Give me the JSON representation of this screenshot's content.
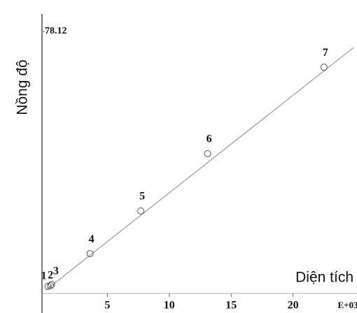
{
  "chart_data": {
    "type": "scatter",
    "y_label": "Nồng độ",
    "x_label": "Diện tích",
    "x_scale_label": "E+03",
    "x": [
      0.2,
      0.4,
      0.5,
      3.6,
      7.7,
      13.1,
      22.5
    ],
    "values": [
      1.7,
      1.9,
      2.3,
      11.5,
      24.3,
      41.5,
      67.4
    ],
    "point_labels": [
      "1",
      "2",
      "3",
      "4",
      "5",
      "6",
      "7"
    ],
    "fit_line": {
      "x": [
        0,
        24.9
      ],
      "y": [
        0.5,
        73.3
      ]
    },
    "color": "#555555",
    "xlim": [
      0,
      25
    ],
    "xticks": [
      5,
      10,
      15,
      20
    ],
    "ylim": [
      0,
      78.12
    ],
    "yticks": [
      78.12
    ]
  }
}
